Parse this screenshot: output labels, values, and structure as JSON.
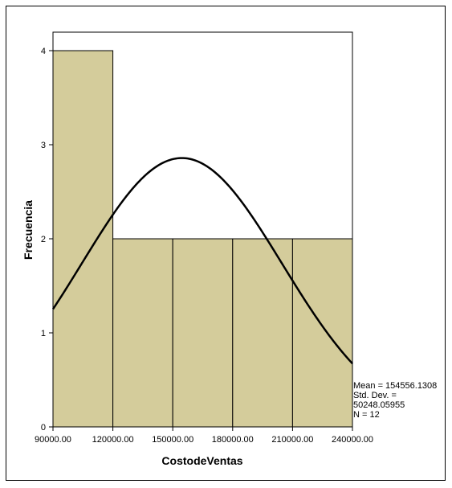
{
  "chart_data": {
    "type": "bar",
    "subtype": "histogram",
    "bins": [
      {
        "start": 90000,
        "end": 120000,
        "count": 4
      },
      {
        "start": 120000,
        "end": 150000,
        "count": 2
      },
      {
        "start": 150000,
        "end": 180000,
        "count": 2
      },
      {
        "start": 180000,
        "end": 210000,
        "count": 2
      },
      {
        "start": 210000,
        "end": 240000,
        "count": 2
      }
    ],
    "xlabel": "CostodeVentas",
    "ylabel": "Frecuencia",
    "xlim": [
      90000,
      240000
    ],
    "ylim": [
      0,
      4.5
    ],
    "x_ticks": [
      "90000.00",
      "120000.00",
      "150000.00",
      "180000.00",
      "210000.00",
      "240000.00"
    ],
    "y_ticks": [
      "0",
      "1",
      "2",
      "3",
      "4"
    ],
    "normal_curve": {
      "mean": 154556.1308,
      "std": 50248.05955,
      "n": 12,
      "bin_width": 30000
    },
    "grid": false,
    "bar_color": "#d4cc9b",
    "curve_color": "#000000"
  },
  "stats": {
    "mean": "Mean = 154556.1308",
    "std_label": "Std. Dev. =",
    "std_value": "50248.05955",
    "n": "N = 12"
  }
}
